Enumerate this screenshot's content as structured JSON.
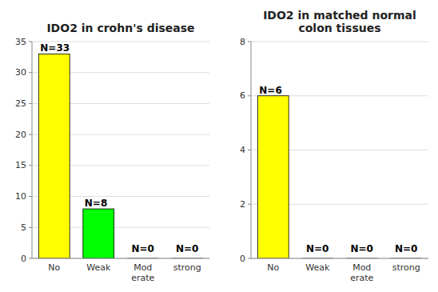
{
  "chart_data": [
    {
      "type": "bar",
      "title": "IDO2 in crohn's disease",
      "categories": [
        "No",
        "Weak",
        "Mod\nerate",
        "strong"
      ],
      "values": [
        33,
        8,
        0,
        0
      ],
      "value_labels": [
        "N=33",
        "N=8",
        "N=0",
        "N=0"
      ],
      "colors": [
        "#FFFF00",
        "#00FF00",
        "#FFFFFF",
        "#FFFFFF"
      ],
      "ylim": [
        0,
        35
      ],
      "yticks": [
        0,
        5,
        10,
        15,
        20,
        25,
        30,
        35
      ],
      "grid": true,
      "data_labels": true
    },
    {
      "type": "bar",
      "title": "IDO2 in matched normal\ncolon tissues",
      "categories": [
        "No",
        "Weak",
        "Mod\nerate",
        "strong"
      ],
      "values": [
        6,
        0,
        0,
        0
      ],
      "value_labels": [
        "N=6",
        "N=0",
        "N=0",
        "N=0"
      ],
      "colors": [
        "#FFFF00",
        "#FFFFFF",
        "#FFFFFF",
        "#FFFFFF"
      ],
      "ylim": [
        0,
        8
      ],
      "yticks": [
        0,
        2,
        4,
        6,
        8
      ],
      "grid": true,
      "data_labels": true
    }
  ]
}
